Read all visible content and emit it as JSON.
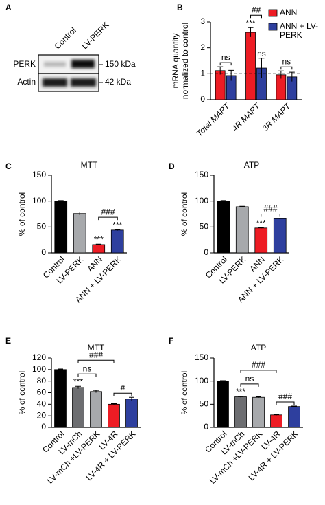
{
  "chart_data": [
    {
      "type": "blot",
      "panel": "A",
      "lanes": [
        "Control",
        "LV-PERK"
      ],
      "rows": [
        {
          "name": "PERK",
          "size": "150 kDa"
        },
        {
          "name": "Actin",
          "size": "42 kDa"
        }
      ]
    },
    {
      "type": "bar",
      "panel": "B",
      "ylabel": [
        "mRNA quantity",
        "normalized to control"
      ],
      "categories": [
        "Total MAPT",
        "4R MAPT",
        "3R MAPT"
      ],
      "italic": true,
      "series": [
        {
          "name": "ANN",
          "color": "#ed1c24",
          "values": [
            1.12,
            2.6,
            0.96
          ],
          "errors": [
            0.15,
            0.18,
            0.15
          ],
          "marks": [
            null,
            "***",
            null
          ]
        },
        {
          "name": "ANN + LV-PERK",
          "color": "#2e3f9e",
          "values": [
            0.93,
            1.22,
            0.88
          ],
          "errors": [
            0.2,
            0.38,
            0.18
          ],
          "marks": [
            null,
            "ns",
            null
          ]
        }
      ],
      "ylim": [
        0,
        3
      ],
      "yticks": [
        0,
        1,
        2,
        3
      ],
      "refline": 1,
      "brackets": [
        {
          "from": [
            0,
            0
          ],
          "to": [
            1,
            0
          ],
          "label": "ns"
        },
        {
          "from": [
            0,
            1
          ],
          "to": [
            1,
            1
          ],
          "label": "##"
        },
        {
          "from": [
            0,
            2
          ],
          "to": [
            1,
            2
          ],
          "label": "ns"
        }
      ]
    },
    {
      "type": "bar",
      "panel": "C",
      "title": "MTT",
      "ylabel": "% of control",
      "categories": [
        "Control",
        "LV-PERK",
        "ANN",
        "ANN + LV-PERK"
      ],
      "values": [
        100,
        76,
        16,
        44
      ],
      "errors": [
        1,
        3,
        1,
        1
      ],
      "colors": [
        "#000000",
        "#a7a9ac",
        "#ed1c24",
        "#2e3f9e"
      ],
      "marks": [
        null,
        null,
        "***",
        "***"
      ],
      "ylim": [
        0,
        150
      ],
      "yticks": [
        0,
        50,
        100,
        150
      ],
      "brackets": [
        {
          "from": 2,
          "to": 3,
          "label": "###"
        }
      ]
    },
    {
      "type": "bar",
      "panel": "D",
      "title": "ATP",
      "ylabel": "% of control",
      "categories": [
        "Control",
        "LV-PERK",
        "ANN",
        "ANN + LV-PERK"
      ],
      "values": [
        100,
        89,
        48,
        66
      ],
      "errors": [
        1,
        1,
        1,
        1
      ],
      "colors": [
        "#000000",
        "#a7a9ac",
        "#ed1c24",
        "#2e3f9e"
      ],
      "marks": [
        null,
        null,
        "***",
        null
      ],
      "ylim": [
        0,
        150
      ],
      "yticks": [
        0,
        50,
        100,
        150
      ],
      "brackets": [
        {
          "from": 2,
          "to": 3,
          "label": "###"
        }
      ]
    },
    {
      "type": "bar",
      "panel": "E",
      "title": "MTT",
      "ylabel": "% of control",
      "categories": [
        "Control",
        "LV-mCh",
        "LV-mCh +LV-PERK",
        "LV-4R",
        "LV-4R + LV-PERK"
      ],
      "values": [
        100,
        69,
        62,
        40,
        49
      ],
      "errors": [
        1,
        2,
        2,
        1,
        3
      ],
      "colors": [
        "#000000",
        "#6d6e71",
        "#a7a9ac",
        "#ed1c24",
        "#2e3f9e"
      ],
      "marks": [
        null,
        "***",
        null,
        null,
        null
      ],
      "ylim": [
        0,
        120
      ],
      "yticks": [
        0,
        20,
        40,
        60,
        80,
        100,
        120
      ],
      "brackets": [
        {
          "from": 1,
          "to": 2,
          "label": "ns"
        },
        {
          "from": 1,
          "to": 3,
          "label": "###"
        },
        {
          "from": 3,
          "to": 4,
          "label": "#"
        }
      ]
    },
    {
      "type": "bar",
      "panel": "F",
      "title": "ATP",
      "ylabel": "% of control",
      "categories": [
        "Control",
        "LV-mCh",
        "LV-mCh +LV-PERK",
        "LV-4R",
        "LV-4R + LV-PERK"
      ],
      "values": [
        100,
        66,
        65,
        27,
        45
      ],
      "errors": [
        1,
        1,
        1,
        1,
        1
      ],
      "colors": [
        "#000000",
        "#6d6e71",
        "#a7a9ac",
        "#ed1c24",
        "#2e3f9e"
      ],
      "marks": [
        null,
        "***",
        null,
        null,
        null
      ],
      "ylim": [
        0,
        150
      ],
      "yticks": [
        0,
        50,
        100,
        150
      ],
      "brackets": [
        {
          "from": 1,
          "to": 2,
          "label": "ns"
        },
        {
          "from": 1,
          "to": 3,
          "label": "###"
        },
        {
          "from": 3,
          "to": 4,
          "label": "###"
        }
      ]
    }
  ]
}
